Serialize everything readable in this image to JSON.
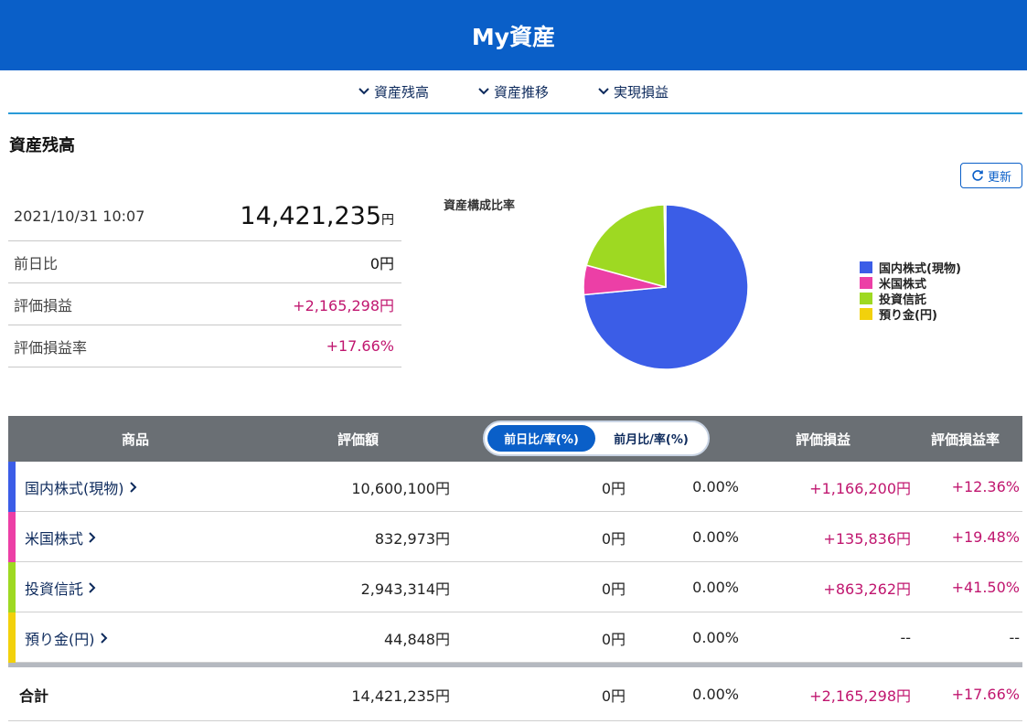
{
  "header": {
    "title": "My資産"
  },
  "nav": {
    "items": [
      {
        "label": "資産残高"
      },
      {
        "label": "資産推移"
      },
      {
        "label": "実現損益"
      }
    ]
  },
  "section": {
    "title": "資産残高"
  },
  "refresh": {
    "label": "更新"
  },
  "summary": {
    "date": "2021/10/31 10:07",
    "total": "14,421,235",
    "total_unit": "円",
    "rows": [
      {
        "label": "前日比",
        "value": "0円"
      },
      {
        "label": "評価損益",
        "value": "+2,165,298円"
      },
      {
        "label": "評価損益率",
        "value": "+17.66%"
      }
    ]
  },
  "chart": {
    "title": "資産構成比率",
    "legend": [
      {
        "label": "国内株式(現物)",
        "color": "#3b5de7"
      },
      {
        "label": "米国株式",
        "color": "#ec3fa6"
      },
      {
        "label": "投資信託",
        "color": "#9ed922"
      },
      {
        "label": "預り金(円)",
        "color": "#f2d10c"
      }
    ]
  },
  "chart_data": {
    "type": "pie",
    "title": "資産構成比率",
    "categories": [
      "国内株式(現物)",
      "米国株式",
      "投資信託",
      "預り金(円)"
    ],
    "values": [
      10600100,
      832973,
      2943314,
      44848
    ],
    "colors": [
      "#3b5de7",
      "#ec3fa6",
      "#9ed922",
      "#f2d10c"
    ],
    "legend": "right"
  },
  "table": {
    "headers": {
      "product": "商品",
      "eval": "評価額",
      "toggle_active": "前日比/率(%)",
      "toggle_inactive": "前月比/率(%)",
      "pl": "評価損益",
      "pl_rate": "評価損益率"
    },
    "rows": [
      {
        "name": "国内株式(現物)",
        "eval": "10,600,100円",
        "day": "0円",
        "rate": "0.00%",
        "pl": "+1,166,200円",
        "pl_rate": "+12.36%",
        "color": "#3b5de7"
      },
      {
        "name": "米国株式",
        "eval": "832,973円",
        "day": "0円",
        "rate": "0.00%",
        "pl": "+135,836円",
        "pl_rate": "+19.48%",
        "color": "#ec3fa6"
      },
      {
        "name": "投資信託",
        "eval": "2,943,314円",
        "day": "0円",
        "rate": "0.00%",
        "pl": "+863,262円",
        "pl_rate": "+41.50%",
        "color": "#9ed922"
      },
      {
        "name": "預り金(円)",
        "eval": "44,848円",
        "day": "0円",
        "rate": "0.00%",
        "pl": "--",
        "pl_rate": "--",
        "color": "#f2d10c"
      }
    ],
    "total": {
      "label": "合計",
      "eval": "14,421,235円",
      "day": "0円",
      "rate": "0.00%",
      "pl": "+2,165,298円",
      "pl_rate": "+17.66%"
    }
  },
  "colors": {
    "header": "#0a5fc8",
    "positive": "#c0166f",
    "nav_line": "#2a9bd8"
  },
  "icons": {
    "nav": "chevron-down-icon",
    "refresh": "refresh-icon",
    "row": "chevron-right-icon"
  }
}
